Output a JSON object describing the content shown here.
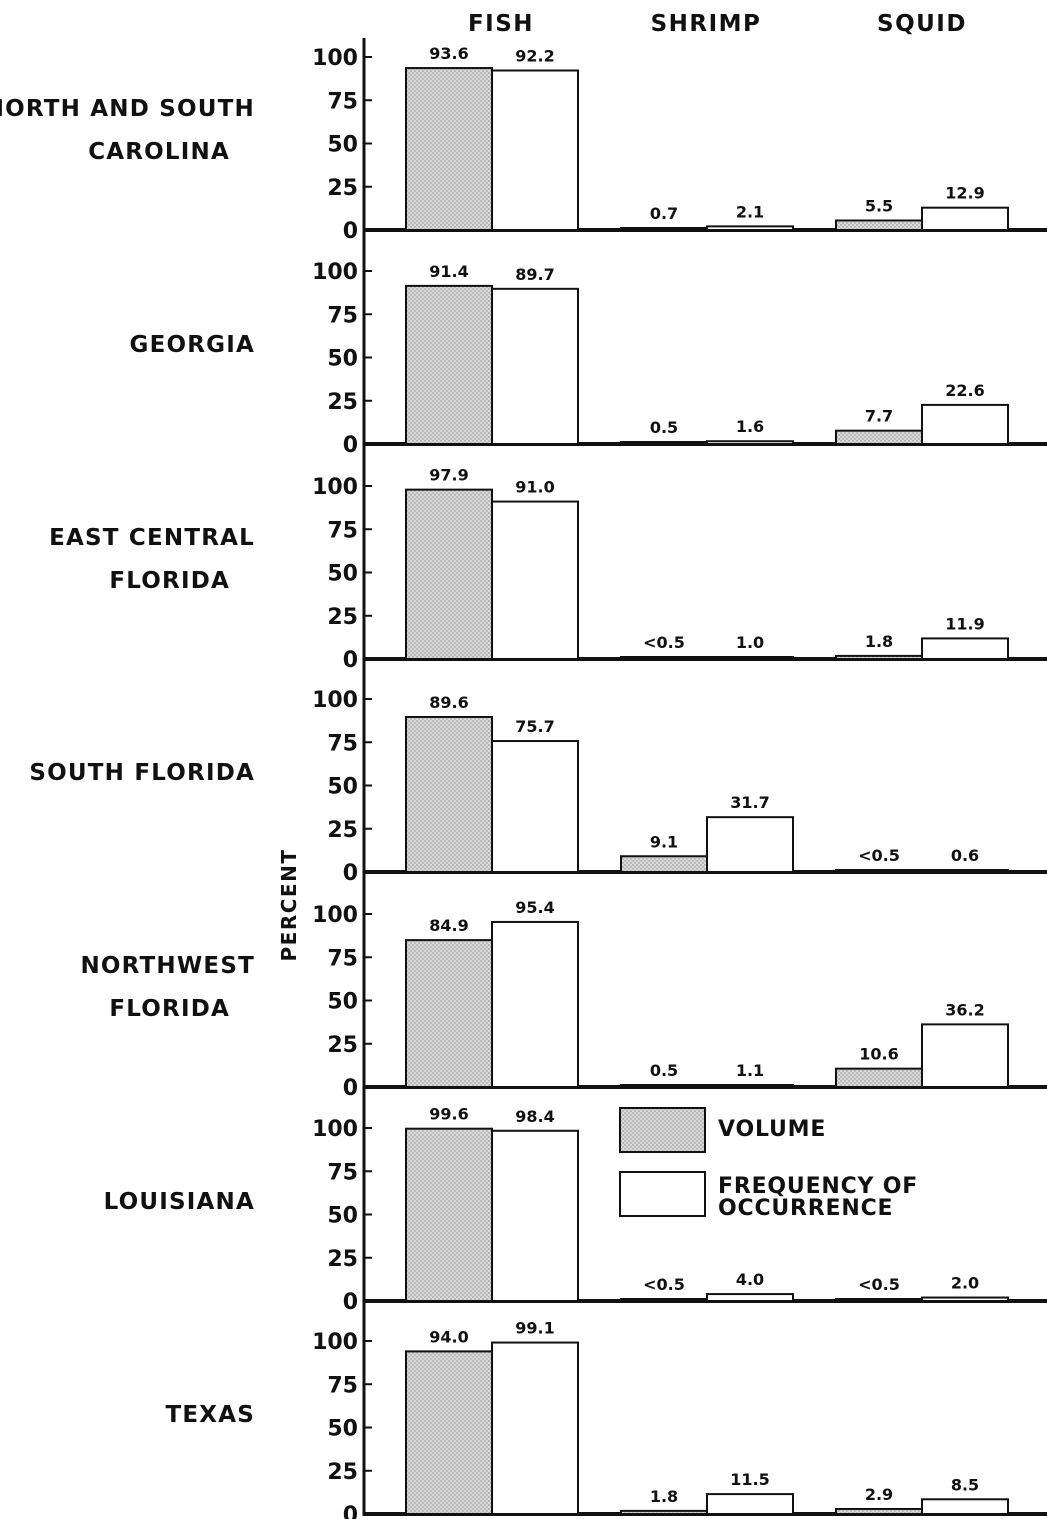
{
  "chart_data": {
    "type": "bar",
    "ylabel": "PERCENT",
    "ylim": [
      0,
      100
    ],
    "yticks": [
      "0",
      "25",
      "50",
      "75",
      "100"
    ],
    "categories": [
      "FISH",
      "SHRIMP",
      "SQUID"
    ],
    "legend": {
      "placement": "inside-right",
      "entries": [
        "VOLUME",
        "FREQUENCY OF OCCURRENCE"
      ]
    },
    "colors": {
      "volume": "#d4d4d4",
      "frequency": "#ffffff",
      "outline": "#111111"
    },
    "panels": [
      {
        "region_lines": [
          "NORTH AND SOUTH",
          "CAROLINA"
        ],
        "series": [
          {
            "name": "VOLUME",
            "values": [
              93.6,
              0.7,
              5.5
            ],
            "labels": [
              "93.6",
              "0.7",
              "5.5"
            ]
          },
          {
            "name": "FREQUENCY OF OCCURRENCE",
            "values": [
              92.2,
              2.1,
              12.9
            ],
            "labels": [
              "92.2",
              "2.1",
              "12.9"
            ]
          }
        ]
      },
      {
        "region_lines": [
          "GEORGIA"
        ],
        "series": [
          {
            "name": "VOLUME",
            "values": [
              91.4,
              0.5,
              7.7
            ],
            "labels": [
              "91.4",
              "0.5",
              "7.7"
            ]
          },
          {
            "name": "FREQUENCY OF OCCURRENCE",
            "values": [
              89.7,
              1.6,
              22.6
            ],
            "labels": [
              "89.7",
              "1.6",
              "22.6"
            ]
          }
        ]
      },
      {
        "region_lines": [
          "EAST CENTRAL",
          "FLORIDA"
        ],
        "series": [
          {
            "name": "VOLUME",
            "values": [
              97.9,
              0.5,
              1.8
            ],
            "labels": [
              "97.9",
              "<0.5",
              "1.8"
            ]
          },
          {
            "name": "FREQUENCY OF OCCURRENCE",
            "values": [
              91.0,
              1.0,
              11.9
            ],
            "labels": [
              "91.0",
              "1.0",
              "11.9"
            ]
          }
        ]
      },
      {
        "region_lines": [
          "SOUTH FLORIDA"
        ],
        "series": [
          {
            "name": "VOLUME",
            "values": [
              89.6,
              9.1,
              0.5
            ],
            "labels": [
              "89.6",
              "9.1",
              "<0.5"
            ]
          },
          {
            "name": "FREQUENCY OF OCCURRENCE",
            "values": [
              75.7,
              31.7,
              0.6
            ],
            "labels": [
              "75.7",
              "31.7",
              "0.6"
            ]
          }
        ]
      },
      {
        "region_lines": [
          "NORTHWEST",
          "FLORIDA"
        ],
        "series": [
          {
            "name": "VOLUME",
            "values": [
              84.9,
              0.5,
              10.6
            ],
            "labels": [
              "84.9",
              "0.5",
              "10.6"
            ]
          },
          {
            "name": "FREQUENCY OF OCCURRENCE",
            "values": [
              95.4,
              1.1,
              36.2
            ],
            "labels": [
              "95.4",
              "1.1",
              "36.2"
            ]
          }
        ]
      },
      {
        "region_lines": [
          "LOUISIANA"
        ],
        "series": [
          {
            "name": "VOLUME",
            "values": [
              99.6,
              0.5,
              0.5
            ],
            "labels": [
              "99.6",
              "<0.5",
              "<0.5"
            ]
          },
          {
            "name": "FREQUENCY OF OCCURRENCE",
            "values": [
              98.4,
              4.0,
              2.0
            ],
            "labels": [
              "98.4",
              "4.0",
              "2.0"
            ]
          }
        ]
      },
      {
        "region_lines": [
          "TEXAS"
        ],
        "series": [
          {
            "name": "VOLUME",
            "values": [
              94.0,
              1.8,
              2.9
            ],
            "labels": [
              "94.0",
              "1.8",
              "2.9"
            ]
          },
          {
            "name": "FREQUENCY OF OCCURRENCE",
            "values": [
              99.1,
              11.5,
              8.5
            ],
            "labels": [
              "99.1",
              "11.5",
              "8.5"
            ]
          }
        ]
      }
    ]
  }
}
